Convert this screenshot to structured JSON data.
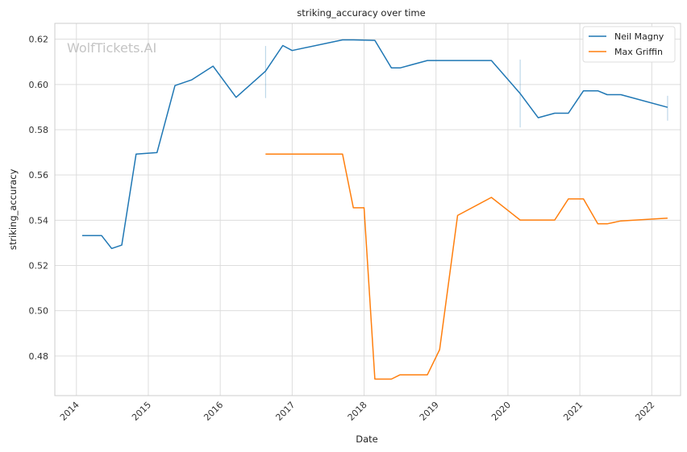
{
  "chart_data": {
    "type": "line",
    "title": "striking_accuracy over time",
    "xlabel": "Date",
    "ylabel": "striking_accuracy",
    "watermark": "WolfTickets.AI",
    "xlim": [
      2013.7,
      2022.4
    ],
    "ylim": [
      0.4625,
      0.627
    ],
    "x_ticks": [
      2014,
      2015,
      2016,
      2017,
      2018,
      2019,
      2020,
      2021,
      2022
    ],
    "x_tick_labels": [
      "2014",
      "2015",
      "2016",
      "2017",
      "2018",
      "2019",
      "2020",
      "2021",
      "2022"
    ],
    "y_ticks": [
      0.48,
      0.5,
      0.52,
      0.54,
      0.56,
      0.58,
      0.6,
      0.62
    ],
    "y_tick_labels": [
      "0.48",
      "0.50",
      "0.52",
      "0.54",
      "0.56",
      "0.58",
      "0.60",
      "0.62"
    ],
    "grid": true,
    "legend_position": "top-right",
    "series": [
      {
        "name": "Neil Magny",
        "color": "#1f77b4",
        "x": [
          2014.08,
          2014.25,
          2014.35,
          2014.49,
          2014.63,
          2014.83,
          2015.12,
          2015.37,
          2015.6,
          2015.9,
          2016.22,
          2016.63,
          2016.87,
          2017.0,
          2017.7,
          2017.85,
          2018.15,
          2018.38,
          2018.5,
          2018.88,
          2019.2,
          2019.77,
          2020.17,
          2020.42,
          2020.65,
          2020.84,
          2021.05,
          2021.25,
          2021.38,
          2021.57,
          2022.22
        ],
        "y": [
          0.5332,
          0.5332,
          0.5332,
          0.5275,
          0.529,
          0.5692,
          0.5699,
          0.5995,
          0.602,
          0.6081,
          0.5943,
          0.6059,
          0.6172,
          0.615,
          0.6197,
          0.6197,
          0.6195,
          0.6073,
          0.6073,
          0.6106,
          0.6106,
          0.6106,
          0.596,
          0.5853,
          0.5873,
          0.5873,
          0.5972,
          0.5972,
          0.5955,
          0.5955,
          0.5899
        ],
        "error_bars": [
          {
            "x": 2016.63,
            "low": 0.594,
            "high": 0.617
          },
          {
            "x": 2020.17,
            "low": 0.581,
            "high": 0.611
          },
          {
            "x": 2022.22,
            "low": 0.584,
            "high": 0.595
          }
        ]
      },
      {
        "name": "Max Griffin",
        "color": "#ff7f0e",
        "x": [
          2016.63,
          2017.7,
          2017.85,
          2018.0,
          2018.15,
          2018.38,
          2018.5,
          2018.88,
          2019.05,
          2019.3,
          2019.77,
          2020.17,
          2020.65,
          2020.84,
          2021.05,
          2021.25,
          2021.38,
          2021.57,
          2022.22
        ],
        "y": [
          0.5692,
          0.5692,
          0.5455,
          0.5455,
          0.4698,
          0.4698,
          0.4717,
          0.4717,
          0.4828,
          0.5421,
          0.5501,
          0.5401,
          0.5401,
          0.5494,
          0.5494,
          0.5384,
          0.5384,
          0.5397,
          0.5409
        ]
      }
    ]
  }
}
